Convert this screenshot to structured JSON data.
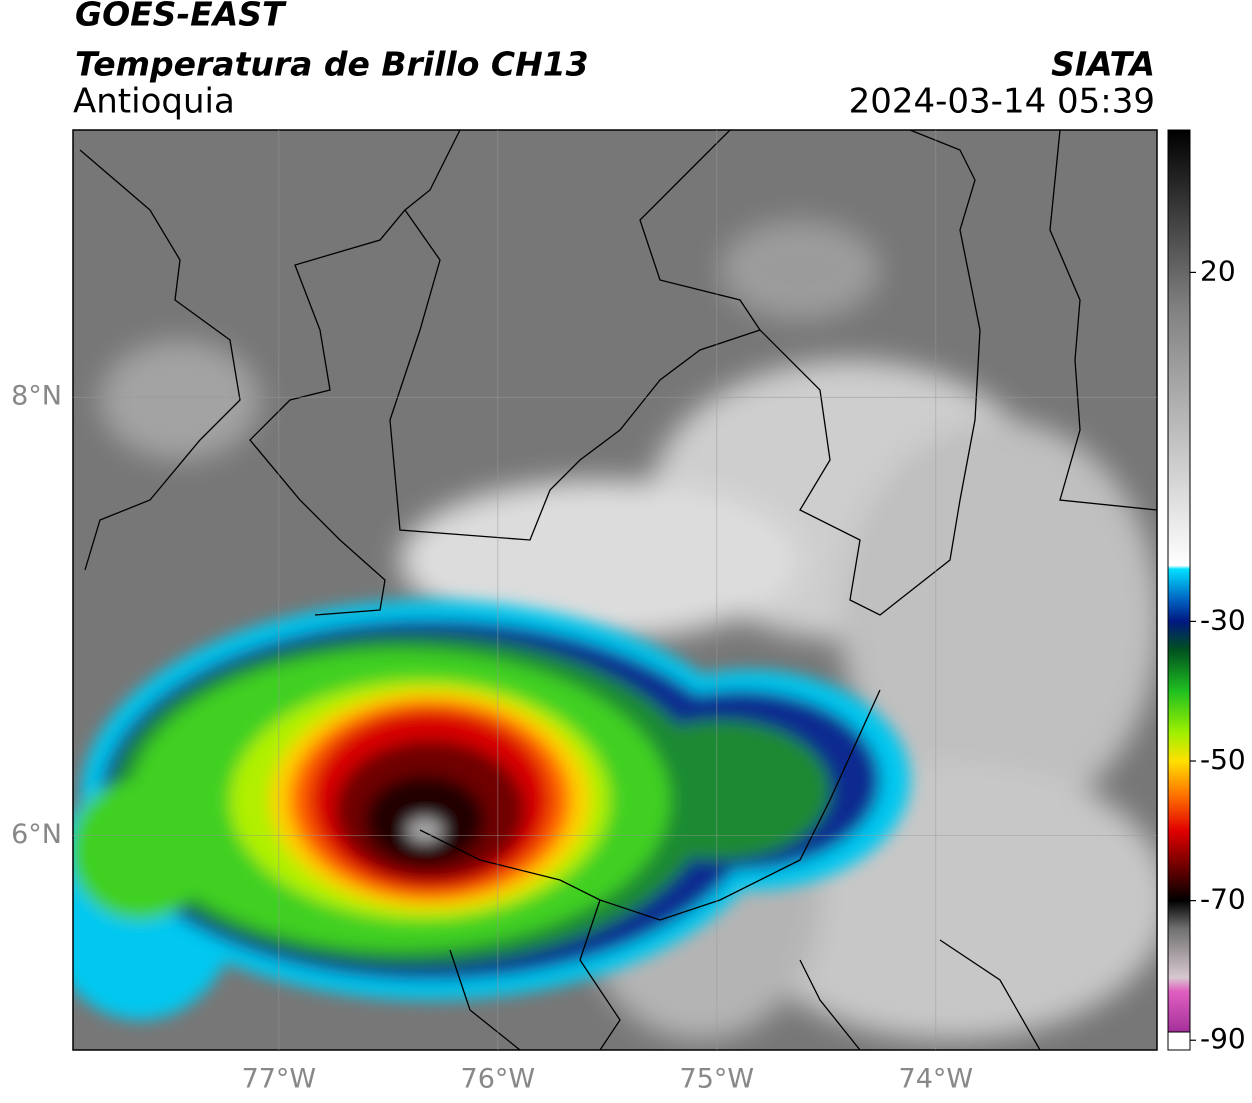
{
  "header": {
    "title": "GOES-EAST",
    "subtitle": "Temperatura de Brillo CH13",
    "region": "Antioquia",
    "source": "SIATA",
    "datetime": "2024-03-14 05:39"
  },
  "map": {
    "xlim": [
      -77.94,
      -72.99
    ],
    "ylim": [
      5.02,
      9.22
    ],
    "xticks": [
      {
        "value": -77,
        "label": "77°W"
      },
      {
        "value": -76,
        "label": "76°W"
      },
      {
        "value": -75,
        "label": "75°W"
      },
      {
        "value": -74,
        "label": "74°W"
      }
    ],
    "yticks": [
      {
        "value": 8,
        "label": "8°N"
      },
      {
        "value": 6,
        "label": "6°N"
      }
    ],
    "grid": true
  },
  "colorbar": {
    "lim": [
      -91.4,
      40.4
    ],
    "ticks": [
      20,
      -30,
      -50,
      -70,
      -90
    ],
    "colormap": [
      {
        "value": -91.4,
        "color": "#8a1a8a"
      },
      {
        "value": -83,
        "color": "#e060c0"
      },
      {
        "value": -81,
        "color": "#d8c8d0"
      },
      {
        "value": -74,
        "color": "#707070"
      },
      {
        "value": -70,
        "color": "#000000"
      },
      {
        "value": -66,
        "color": "#5a0000"
      },
      {
        "value": -60,
        "color": "#e00000"
      },
      {
        "value": -55,
        "color": "#ff7000"
      },
      {
        "value": -50,
        "color": "#ffe000"
      },
      {
        "value": -46,
        "color": "#a0f000"
      },
      {
        "value": -40,
        "color": "#20c020"
      },
      {
        "value": -34,
        "color": "#005020"
      },
      {
        "value": -30,
        "color": "#001880"
      },
      {
        "value": -27,
        "color": "#0060c0"
      },
      {
        "value": -22.5,
        "color": "#00e0ff"
      },
      {
        "value": -22,
        "color": "#ffffff"
      },
      {
        "value": 15,
        "color": "#808080"
      },
      {
        "value": 40.4,
        "color": "#000000"
      }
    ]
  }
}
